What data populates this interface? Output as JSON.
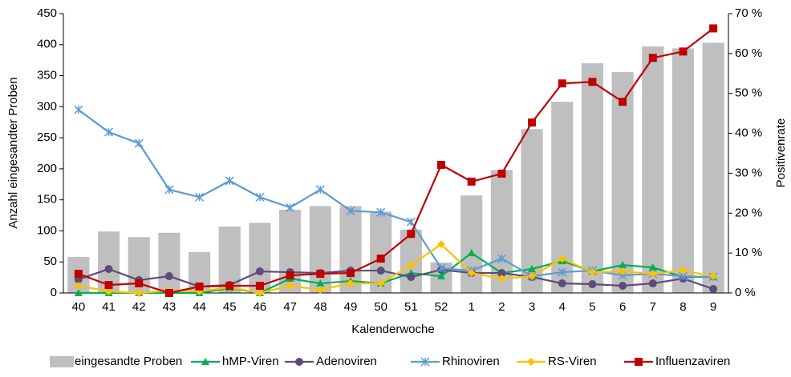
{
  "chart_data": {
    "type": "bar-line",
    "x_label": "Kalenderwoche",
    "y_label": "Anzahl eingesandter Proben",
    "y2_label": "Positivenrate",
    "categories": [
      "40",
      "41",
      "42",
      "43",
      "44",
      "45",
      "46",
      "47",
      "48",
      "49",
      "50",
      "51",
      "52",
      "1",
      "2",
      "3",
      "4",
      "5",
      "6",
      "7",
      "8",
      "9"
    ],
    "ylim": [
      0,
      450
    ],
    "yticks": [
      0,
      50,
      100,
      150,
      200,
      250,
      300,
      350,
      400,
      450
    ],
    "y2lim": [
      0,
      70
    ],
    "y2ticks": [
      {
        "value": 0,
        "label": "0 %"
      },
      {
        "value": 10,
        "label": "10 %"
      },
      {
        "value": 20,
        "label": "20 %"
      },
      {
        "value": 30,
        "label": "30 %"
      },
      {
        "value": 40,
        "label": "40 %"
      },
      {
        "value": 50,
        "label": "50 %"
      },
      {
        "value": 60,
        "label": "60 %"
      },
      {
        "value": 70,
        "label": "70 %"
      }
    ],
    "series": [
      {
        "name": "eingesandte Proben",
        "type": "bar",
        "color": "#bfbfbf",
        "values": [
          58,
          99,
          90,
          97,
          66,
          107,
          113,
          134,
          140,
          140,
          131,
          102,
          49,
          157,
          198,
          264,
          308,
          370,
          356,
          397,
          394,
          403
        ]
      },
      {
        "name": "hMP-Viren",
        "type": "line",
        "axis": "y2",
        "color": "#00b050",
        "marker": "triangle",
        "values": [
          0,
          0,
          0,
          0,
          0,
          1.2,
          0,
          3.6,
          2.4,
          3.0,
          2.4,
          5.0,
          4.2,
          10.0,
          5.0,
          6.0,
          8.0,
          5.4,
          7.0,
          6.4,
          4.0,
          4.0
        ]
      },
      {
        "name": "Adenoviren",
        "type": "line",
        "axis": "y2",
        "color": "#604a7b",
        "marker": "circle",
        "values": [
          3.4,
          6.0,
          3.2,
          4.2,
          1.6,
          2.0,
          5.4,
          5.2,
          5.0,
          5.6,
          5.6,
          4.0,
          5.8,
          5.0,
          5.0,
          4.0,
          2.4,
          2.2,
          1.8,
          2.4,
          3.6,
          1.0
        ]
      },
      {
        "name": "Rhinoviren",
        "type": "line",
        "axis": "y2",
        "color": "#5b9bd5",
        "marker": "star",
        "values": [
          45.9,
          40.3,
          37.5,
          25.9,
          24.0,
          28.1,
          24.0,
          21.4,
          25.9,
          20.6,
          20.2,
          17.8,
          6.2,
          5.6,
          8.6,
          4.2,
          5.2,
          5.6,
          4.4,
          4.8,
          4.2,
          4.0
        ]
      },
      {
        "name": "RS-Viren",
        "type": "line",
        "axis": "y2",
        "color": "#ffc000",
        "marker": "diamond",
        "values": [
          1.8,
          0.4,
          0,
          0.6,
          0.4,
          1.4,
          0,
          1.8,
          0.8,
          2.4,
          2.4,
          7.0,
          12.2,
          5.0,
          3.6,
          4.2,
          8.6,
          5.2,
          5.4,
          4.8,
          5.6,
          4.2
        ]
      },
      {
        "name": "Influenzaviren",
        "type": "line",
        "axis": "y2",
        "color": "#c00000",
        "marker": "square",
        "values": [
          4.8,
          2.0,
          2.4,
          0,
          1.6,
          1.8,
          1.8,
          4.4,
          4.8,
          5.0,
          8.6,
          14.8,
          32.1,
          27.9,
          29.9,
          42.7,
          52.5,
          52.9,
          47.9,
          58.9,
          60.5,
          66.3
        ]
      }
    ]
  }
}
